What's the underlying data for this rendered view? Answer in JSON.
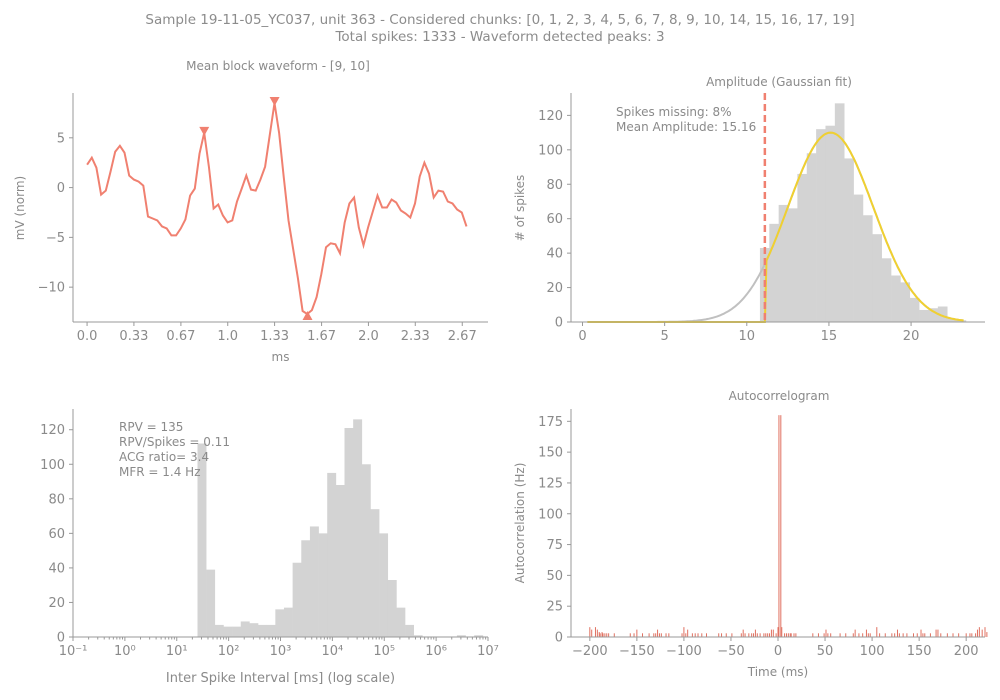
{
  "suptitle": {
    "line1": "Sample 19-11-05_YC037, unit 363 - Considered chunks: [0, 1, 2, 3, 4, 5, 6, 7, 8, 9, 10, 14, 15, 16, 17, 19]",
    "line2": "Total spikes: 1333 - Waveform detected peaks: 3"
  },
  "colors": {
    "axis": "#999999",
    "text": "#8a8a8a",
    "waveform": "#f08070",
    "bars": "#d3d3d3",
    "gaussian": "#f0d030",
    "full_gaussian": "#c0c0c0",
    "threshold": "#f08070",
    "acg": "#e07060"
  },
  "chart_data": [
    {
      "type": "line",
      "title": "Mean block waveform - [9, 10]",
      "xlabel": "ms",
      "ylabel": "mV (norm)",
      "xlim": [
        -0.1,
        2.85
      ],
      "ylim": [
        -13.5,
        9.5
      ],
      "xticks": [
        0,
        0.333,
        0.667,
        1.0,
        1.333,
        1.667,
        2.0,
        2.333,
        2.667
      ],
      "xticklabels": [
        "0.0",
        "0.33",
        "0.67",
        "1.0",
        "1.33",
        "1.67",
        "2.0",
        "2.33",
        "2.67"
      ],
      "yticks": [
        5,
        0,
        -5,
        -10
      ],
      "yticklabels": [
        "5",
        "0",
        "−5",
        "−10"
      ],
      "series": [
        {
          "x_start": 0.0,
          "x_step": 0.0333,
          "values": [
            2.3,
            3.0,
            2.0,
            -0.7,
            -0.3,
            1.6,
            3.6,
            4.2,
            3.5,
            1.2,
            0.8,
            0.6,
            0.2,
            -2.9,
            -3.1,
            -3.3,
            -3.9,
            -4.1,
            -4.8,
            -4.8,
            -4.1,
            -3.2,
            -0.8,
            -0.1,
            3.4,
            5.5,
            2.1,
            -2.1,
            -1.7,
            -2.8,
            -3.5,
            -3.3,
            -1.4,
            -0.1,
            1.2,
            -0.2,
            -0.3,
            0.8,
            2.1,
            5.3,
            8.5,
            5.5,
            1.0,
            -3.3,
            -6.2,
            -9.1,
            -12.4,
            -12.7,
            -12.3,
            -11.0,
            -8.7,
            -6.0,
            -5.6,
            -5.7,
            -6.6,
            -3.5,
            -1.6,
            -1.0,
            -4.0,
            -5.8,
            -4.0,
            -2.4,
            -0.8,
            -2.0,
            -2.0,
            -1.2,
            -1.5,
            -2.3,
            -2.6,
            -3.0,
            -1.6,
            1.1,
            2.5,
            1.4,
            -1.0,
            -0.3,
            -0.4,
            -1.4,
            -1.6,
            -2.2,
            -2.5,
            -3.9
          ]
        }
      ],
      "peaks": [
        {
          "x": 0.833,
          "y": 5.5,
          "marker": "down-triangle"
        },
        {
          "x": 1.333,
          "y": 8.5,
          "marker": "down-triangle"
        },
        {
          "x": 1.567,
          "y": -12.7,
          "marker": "up-triangle"
        }
      ]
    },
    {
      "type": "bar",
      "title": "Amplitude (Gaussian fit)",
      "xlabel": "",
      "ylabel": "# of spikes",
      "xlim": [
        -0.7,
        24.5
      ],
      "ylim": [
        0,
        133
      ],
      "xticks": [
        0,
        5,
        10,
        15,
        20
      ],
      "xticklabels": [
        "0",
        "5",
        "10",
        "15",
        "20"
      ],
      "yticks": [
        0,
        20,
        40,
        60,
        80,
        100,
        120
      ],
      "yticklabels": [
        "0",
        "20",
        "40",
        "60",
        "80",
        "100",
        "120"
      ],
      "bin_start": 10.8,
      "bin_width": 0.57,
      "values": [
        43,
        57,
        68,
        66,
        86,
        98,
        112,
        114,
        127,
        95,
        74,
        62,
        51,
        37,
        27,
        23,
        14,
        7,
        8,
        9,
        2,
        1
      ],
      "threshold_x": 11.1,
      "gaussian_fit": {
        "mean": 15.1,
        "sigma": 2.6,
        "amplitude": 110,
        "x_from": 0.3,
        "x_to": 23.3
      },
      "annotations": [
        "Spikes missing: 8%",
        "Mean Amplitude: 15.16"
      ]
    },
    {
      "type": "bar",
      "title": "",
      "xlabel": "Inter Spike Interval [ms] (log scale)",
      "ylabel": "",
      "xscale": "log",
      "xlim_log10": [
        -1,
        7
      ],
      "ylim": [
        0,
        132
      ],
      "xticklabels": [
        "10⁻¹",
        "10⁰",
        "10¹",
        "10²",
        "10³",
        "10⁴",
        "10⁵",
        "10⁶",
        "10⁷"
      ],
      "yticks": [
        0,
        20,
        40,
        60,
        80,
        100,
        120
      ],
      "yticklabels": [
        "0",
        "20",
        "40",
        "60",
        "80",
        "100",
        "120"
      ],
      "bin_start_log10": 1.4,
      "bin_width_log10": 0.1667,
      "values": [
        112,
        39,
        7,
        6,
        6,
        9,
        8,
        7,
        7,
        16,
        17,
        43,
        56,
        64,
        60,
        95,
        88,
        121,
        126,
        100,
        74,
        60,
        33,
        17,
        7,
        1,
        0,
        0,
        0,
        0,
        1,
        0,
        1
      ],
      "annotations": [
        "RPV = 135",
        "RPV/Spikes = 0.11",
        "ACG ratio= 3.4",
        "MFR = 1.4 Hz"
      ]
    },
    {
      "type": "bar",
      "title": "Autocorrelogram",
      "xlabel": "Time (ms)",
      "ylabel": "Autocorrelation (Hz)",
      "xlim": [
        -220,
        220
      ],
      "ylim": [
        0,
        185
      ],
      "xticks": [
        -200,
        -150,
        -100,
        -50,
        0,
        50,
        100,
        150,
        200
      ],
      "xticklabels": [
        "−200",
        "−150",
        "−100",
        "−50",
        "0",
        "50",
        "100",
        "150",
        "200"
      ],
      "yticks": [
        0,
        25,
        50,
        75,
        100,
        125,
        150,
        175
      ],
      "yticklabels": [
        "0",
        "25",
        "50",
        "75",
        "100",
        "125",
        "150",
        "175"
      ],
      "x_start": -200,
      "x_step": 1,
      "values": [
        8,
        0,
        6,
        0,
        0,
        0,
        8,
        0,
        6,
        0,
        4,
        3,
        0,
        4,
        3,
        0,
        3,
        0,
        3,
        0,
        3,
        0,
        0,
        0,
        0,
        0,
        3,
        0,
        0,
        0,
        0,
        0,
        0,
        0,
        0,
        0,
        0,
        0,
        0,
        0,
        0,
        0,
        0,
        3,
        0,
        0,
        0,
        3,
        0,
        0,
        6,
        0,
        0,
        0,
        0,
        0,
        3,
        0,
        0,
        0,
        0,
        0,
        0,
        3,
        0,
        0,
        0,
        0,
        3,
        0,
        3,
        0,
        6,
        0,
        3,
        0,
        3,
        0,
        0,
        0,
        0,
        3,
        0,
        0,
        3,
        0,
        0,
        0,
        0,
        0,
        0,
        0,
        0,
        0,
        0,
        0,
        0,
        0,
        3,
        0,
        8,
        0,
        3,
        0,
        6,
        0,
        0,
        0,
        0,
        3,
        0,
        0,
        3,
        0,
        0,
        3,
        0,
        0,
        0,
        3,
        0,
        0,
        0,
        0,
        3,
        0,
        0,
        0,
        0,
        0,
        0,
        0,
        0,
        0,
        0,
        0,
        0,
        3,
        0,
        0,
        3,
        0,
        0,
        0,
        0,
        3,
        0,
        0,
        0,
        0,
        0,
        3,
        0,
        0,
        0,
        0,
        0,
        0,
        0,
        0,
        0,
        3,
        0,
        6,
        0,
        3,
        0,
        0,
        0,
        3,
        0,
        0,
        3,
        0,
        3,
        0,
        6,
        0,
        3,
        0,
        0,
        3,
        0,
        0,
        0,
        3,
        0,
        3,
        0,
        3,
        0,
        3,
        0,
        6,
        0,
        6,
        0,
        0,
        3,
        0,
        8,
        180,
        0,
        180,
        8,
        0,
        0,
        3,
        0,
        3,
        0,
        3,
        0,
        3,
        3,
        0,
        0,
        3,
        0,
        3,
        0,
        0,
        0,
        0,
        0,
        0,
        0,
        0,
        0,
        0,
        0,
        0,
        0,
        0,
        0,
        0,
        0,
        3,
        0,
        0,
        0,
        0,
        0,
        3,
        0,
        0,
        0,
        0,
        0,
        3,
        0,
        6,
        0,
        3,
        0,
        0,
        3,
        0,
        0,
        0,
        0,
        0,
        0,
        0,
        0,
        0,
        3,
        0,
        0,
        0,
        0,
        0,
        3,
        0,
        0,
        0,
        0,
        0,
        0,
        0,
        3,
        0,
        6,
        0,
        0,
        0,
        3,
        0,
        0,
        0,
        3,
        0,
        0,
        0,
        6,
        0,
        3,
        0,
        3,
        0,
        0,
        0,
        0,
        0,
        0,
        8,
        0,
        0,
        3,
        0,
        0,
        0,
        0,
        0,
        3,
        0,
        0,
        0,
        0,
        0,
        0,
        3,
        0,
        0,
        3,
        0,
        0,
        6,
        0,
        3,
        0,
        0,
        0,
        3,
        0,
        0,
        0,
        3,
        0,
        0,
        0,
        0,
        0,
        0,
        3,
        0,
        0,
        0,
        3,
        0,
        0,
        0,
        6,
        0,
        3,
        0,
        3,
        0,
        0,
        0,
        0,
        0,
        3,
        0,
        0,
        0,
        0,
        0,
        6,
        0,
        6,
        0,
        0,
        3,
        0,
        0,
        0,
        0,
        0,
        0,
        3,
        0,
        0,
        0,
        0,
        0,
        3,
        0,
        0,
        0,
        0,
        0,
        3,
        0,
        0,
        0,
        0,
        0,
        0,
        0,
        3,
        0,
        0,
        0,
        3,
        0,
        3,
        0,
        0,
        0,
        3,
        0,
        6,
        0,
        8,
        0,
        0,
        6,
        0,
        0,
        8,
        0,
        4
      ]
    }
  ]
}
